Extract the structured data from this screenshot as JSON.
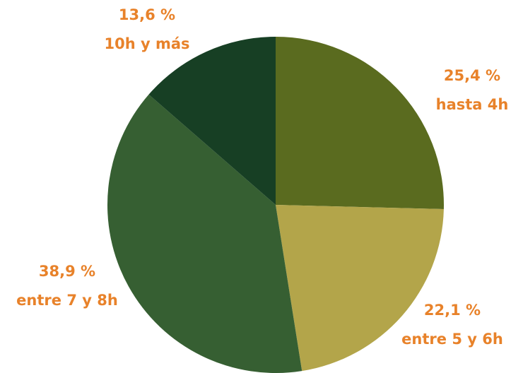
{
  "chart_data": {
    "type": "pie",
    "categories": [
      "hasta 4h",
      "entre 5 y 6h",
      "entre 7 y 8h",
      "10h y más"
    ],
    "values": [
      25.4,
      22.1,
      38.9,
      13.6
    ],
    "value_labels": [
      "25,4 %",
      "22,1 %",
      "38,9 %",
      "13,6 %"
    ],
    "colors": [
      "#5a6b1f",
      "#b3a54a",
      "#365f32",
      "#173f24"
    ]
  }
}
